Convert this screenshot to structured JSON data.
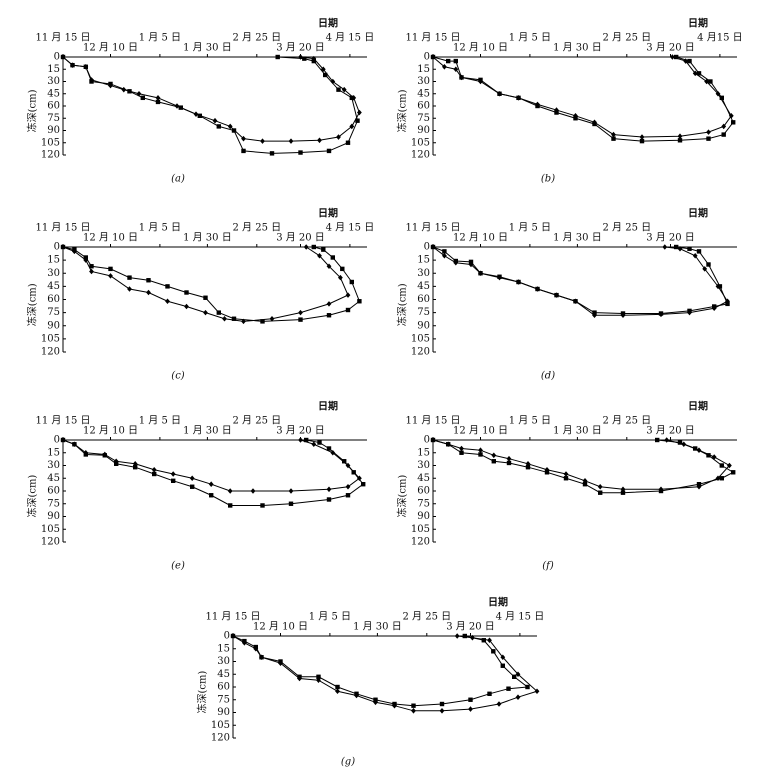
{
  "chart_data": [
    {
      "type": "line",
      "caption": "(a)",
      "xlabel": "日期",
      "ylabel": "冻深(cm)",
      "xlim": [
        0,
        160
      ],
      "ylim": [
        0,
        120
      ],
      "xticks": [
        {
          "value": 0,
          "label": "11 月 15 日"
        },
        {
          "value": 25,
          "label": "12 月 10 日"
        },
        {
          "value": 51,
          "label": "1 月 5 日"
        },
        {
          "value": 76,
          "label": "1 月 30 日"
        },
        {
          "value": 102,
          "label": "2 月 25 日"
        },
        {
          "value": 125,
          "label": "3 月 20 日"
        },
        {
          "value": 151,
          "label": "4 月 15 日"
        }
      ],
      "yticks": [
        0,
        15,
        30,
        45,
        60,
        75,
        90,
        105,
        120
      ],
      "series": [
        {
          "color": "#000000",
          "marker": "diamond",
          "x": [
            0,
            5,
            12,
            15,
            25,
            32,
            40,
            50,
            60,
            70,
            80,
            88,
            95,
            105,
            120,
            135,
            145,
            152,
            156,
            153,
            148,
            142,
            137,
            132,
            125
          ],
          "values": [
            0,
            10,
            12,
            28,
            35,
            40,
            45,
            50,
            60,
            70,
            78,
            85,
            100,
            103,
            103,
            102,
            98,
            85,
            68,
            50,
            40,
            30,
            15,
            2,
            0
          ]
        },
        {
          "color": "#000000",
          "marker": "square",
          "x": [
            0,
            5,
            12,
            15,
            25,
            35,
            42,
            50,
            62,
            72,
            82,
            90,
            95,
            110,
            125,
            140,
            150,
            155,
            152,
            145,
            138,
            132,
            127,
            113
          ],
          "values": [
            0,
            10,
            12,
            30,
            33,
            42,
            50,
            55,
            62,
            72,
            85,
            90,
            115,
            118,
            117,
            115,
            105,
            78,
            50,
            40,
            22,
            5,
            2,
            0
          ]
        }
      ]
    },
    {
      "type": "line",
      "caption": "(b)",
      "xlabel": "日期",
      "ylabel": "冻深(cm)",
      "xlim": [
        0,
        160
      ],
      "ylim": [
        0,
        120
      ],
      "xticks": [
        {
          "value": 0,
          "label": "11 月 15 日"
        },
        {
          "value": 25,
          "label": "12 月 10 日"
        },
        {
          "value": 51,
          "label": "1 月 5 日"
        },
        {
          "value": 76,
          "label": "1 月 30 日"
        },
        {
          "value": 102,
          "label": "2 月 25 日"
        },
        {
          "value": 125,
          "label": "3 月 20 日"
        },
        {
          "value": 151,
          "label": "4 月15 日"
        }
      ],
      "yticks": [
        0,
        15,
        30,
        45,
        60,
        75,
        90,
        105,
        120
      ],
      "series": [
        {
          "color": "#000000",
          "marker": "diamond",
          "x": [
            0,
            6,
            12,
            15,
            25,
            35,
            45,
            55,
            65,
            75,
            85,
            95,
            110,
            130,
            145,
            153,
            157,
            150,
            144,
            138,
            133,
            126
          ],
          "values": [
            0,
            12,
            15,
            25,
            30,
            45,
            50,
            58,
            65,
            72,
            80,
            95,
            98,
            97,
            92,
            85,
            72,
            45,
            30,
            20,
            5,
            0
          ]
        },
        {
          "color": "#000000",
          "marker": "square",
          "x": [
            0,
            8,
            12,
            15,
            25,
            35,
            45,
            55,
            65,
            75,
            85,
            95,
            110,
            130,
            145,
            153,
            158,
            152,
            146,
            140,
            135,
            128
          ],
          "values": [
            0,
            5,
            5,
            25,
            28,
            45,
            50,
            60,
            68,
            75,
            82,
            100,
            103,
            102,
            100,
            95,
            80,
            50,
            30,
            20,
            5,
            0
          ]
        }
      ]
    },
    {
      "type": "line",
      "caption": "(c)",
      "xlabel": "日期",
      "ylabel": "冻深(cm)",
      "xlim": [
        0,
        160
      ],
      "ylim": [
        0,
        120
      ],
      "xticks": [
        {
          "value": 0,
          "label": "11 月 15 日"
        },
        {
          "value": 25,
          "label": "12 月 10 日"
        },
        {
          "value": 51,
          "label": "1 月 5 日"
        },
        {
          "value": 76,
          "label": "1 月 30 日"
        },
        {
          "value": 102,
          "label": "2 月 25 日"
        },
        {
          "value": 125,
          "label": "3 月 20 日"
        },
        {
          "value": 151,
          "label": "4 月 15 日"
        }
      ],
      "yticks": [
        0,
        15,
        30,
        45,
        60,
        75,
        90,
        105,
        120
      ],
      "series": [
        {
          "color": "#000000",
          "marker": "diamond",
          "x": [
            0,
            6,
            12,
            15,
            25,
            35,
            45,
            55,
            65,
            75,
            85,
            95,
            110,
            125,
            140,
            150,
            146,
            140,
            135,
            128
          ],
          "values": [
            0,
            5,
            15,
            28,
            33,
            48,
            52,
            62,
            68,
            75,
            82,
            85,
            82,
            75,
            65,
            55,
            35,
            22,
            10,
            0
          ]
        },
        {
          "color": "#000000",
          "marker": "square",
          "x": [
            0,
            6,
            12,
            15,
            25,
            35,
            45,
            55,
            65,
            75,
            82,
            90,
            105,
            125,
            140,
            150,
            156,
            152,
            147,
            142,
            137,
            132
          ],
          "values": [
            0,
            3,
            12,
            22,
            25,
            35,
            38,
            45,
            52,
            58,
            75,
            82,
            85,
            83,
            78,
            72,
            62,
            40,
            25,
            12,
            3,
            0
          ]
        }
      ]
    },
    {
      "type": "line",
      "caption": "(d)",
      "xlabel": "日期",
      "ylabel": "冻深(cm)",
      "xlim": [
        0,
        160
      ],
      "ylim": [
        0,
        120
      ],
      "xticks": [
        {
          "value": 0,
          "label": "11 月 15 日"
        },
        {
          "value": 25,
          "label": "12 月 10 日"
        },
        {
          "value": 51,
          "label": "1 月 5 日"
        },
        {
          "value": 76,
          "label": "1 月 30 日"
        },
        {
          "value": 102,
          "label": "2 月 25 日"
        },
        {
          "value": 125,
          "label": "3 月 20 日"
        }
      ],
      "yticks": [
        0,
        15,
        30,
        45,
        60,
        75,
        90,
        105,
        120
      ],
      "series": [
        {
          "color": "#000000",
          "marker": "diamond",
          "x": [
            0,
            6,
            12,
            20,
            25,
            35,
            45,
            55,
            65,
            75,
            85,
            100,
            120,
            135,
            148,
            155,
            150,
            143,
            138,
            130,
            122
          ],
          "values": [
            0,
            10,
            18,
            20,
            30,
            35,
            40,
            48,
            55,
            62,
            78,
            78,
            77,
            75,
            70,
            62,
            45,
            25,
            10,
            2,
            0
          ]
        },
        {
          "color": "#000000",
          "marker": "square",
          "x": [
            0,
            6,
            12,
            20,
            25,
            35,
            45,
            55,
            65,
            75,
            85,
            100,
            120,
            135,
            148,
            155,
            151,
            145,
            140,
            135,
            128
          ],
          "values": [
            0,
            5,
            16,
            17,
            30,
            34,
            40,
            48,
            55,
            62,
            75,
            76,
            76,
            73,
            68,
            65,
            45,
            20,
            5,
            2,
            0
          ]
        }
      ]
    },
    {
      "type": "line",
      "caption": "(e)",
      "xlabel": "日期",
      "ylabel": "冻深(cm)",
      "xlim": [
        0,
        160
      ],
      "ylim": [
        0,
        120
      ],
      "xticks": [
        {
          "value": 0,
          "label": "11 月 15 日"
        },
        {
          "value": 25,
          "label": "12 月 10 日"
        },
        {
          "value": 51,
          "label": "1 月 5 日"
        },
        {
          "value": 76,
          "label": "1 月 30 日"
        },
        {
          "value": 102,
          "label": "2 月 25 日"
        },
        {
          "value": 125,
          "label": "3 月 20 日"
        }
      ],
      "yticks": [
        0,
        15,
        30,
        45,
        60,
        75,
        90,
        105,
        120
      ],
      "series": [
        {
          "color": "#000000",
          "marker": "diamond",
          "x": [
            0,
            6,
            12,
            22,
            28,
            38,
            48,
            58,
            68,
            78,
            88,
            100,
            120,
            140,
            150,
            156,
            150,
            142,
            132,
            125
          ],
          "values": [
            0,
            5,
            15,
            17,
            25,
            28,
            35,
            40,
            45,
            52,
            60,
            60,
            60,
            58,
            55,
            45,
            30,
            15,
            5,
            0
          ]
        },
        {
          "color": "#000000",
          "marker": "square",
          "x": [
            0,
            6,
            12,
            22,
            28,
            38,
            48,
            58,
            68,
            78,
            88,
            105,
            120,
            140,
            150,
            158,
            153,
            148,
            140,
            135,
            128
          ],
          "values": [
            0,
            5,
            17,
            18,
            28,
            32,
            40,
            48,
            55,
            65,
            77,
            77,
            75,
            70,
            65,
            52,
            38,
            25,
            10,
            3,
            0
          ]
        }
      ]
    },
    {
      "type": "line",
      "caption": "(f)",
      "xlabel": "日期",
      "ylabel": "冻深(cm)",
      "xlim": [
        0,
        160
      ],
      "ylim": [
        0,
        120
      ],
      "xticks": [
        {
          "value": 0,
          "label": "11 月 15 日"
        },
        {
          "value": 25,
          "label": "12 月 10 日"
        },
        {
          "value": 51,
          "label": "1 月 5 日"
        },
        {
          "value": 76,
          "label": "1 月 30 日"
        },
        {
          "value": 102,
          "label": "2 月 25 日"
        },
        {
          "value": 125,
          "label": "3 月 20 日"
        }
      ],
      "yticks": [
        0,
        15,
        30,
        45,
        60,
        75,
        90,
        105,
        120
      ],
      "series": [
        {
          "color": "#000000",
          "marker": "diamond",
          "x": [
            0,
            8,
            15,
            25,
            32,
            40,
            50,
            60,
            70,
            80,
            88,
            100,
            120,
            140,
            150,
            156,
            148,
            140,
            132,
            123
          ],
          "values": [
            0,
            5,
            10,
            12,
            18,
            22,
            28,
            35,
            40,
            48,
            55,
            58,
            58,
            55,
            45,
            30,
            20,
            12,
            5,
            0
          ]
        },
        {
          "color": "#000000",
          "marker": "square",
          "x": [
            0,
            8,
            15,
            25,
            32,
            40,
            50,
            60,
            70,
            80,
            88,
            100,
            120,
            140,
            152,
            158,
            152,
            145,
            138,
            130,
            118
          ],
          "values": [
            0,
            5,
            15,
            17,
            25,
            27,
            32,
            38,
            45,
            52,
            62,
            62,
            60,
            52,
            45,
            38,
            30,
            18,
            10,
            3,
            0
          ]
        }
      ]
    },
    {
      "type": "line",
      "caption": "(g)",
      "xlabel": "日期",
      "ylabel": "冻深(cm)",
      "xlim": [
        0,
        160
      ],
      "ylim": [
        0,
        120
      ],
      "xticks": [
        {
          "value": 0,
          "label": "11 月 15 日"
        },
        {
          "value": 25,
          "label": "12 月 10 日"
        },
        {
          "value": 51,
          "label": "1 月 5 日"
        },
        {
          "value": 76,
          "label": "1 月 30 日"
        },
        {
          "value": 102,
          "label": "2 月 25 日"
        },
        {
          "value": 125,
          "label": "3 月 20 日"
        },
        {
          "value": 151,
          "label": "4 月 15 日"
        }
      ],
      "yticks": [
        0,
        15,
        30,
        45,
        60,
        75,
        90,
        105,
        120
      ],
      "series": [
        {
          "color": "#000000",
          "marker": "diamond",
          "x": [
            0,
            6,
            12,
            15,
            25,
            35,
            45,
            55,
            65,
            75,
            85,
            95,
            110,
            125,
            140,
            150,
            160,
            150,
            142,
            135,
            126,
            118
          ],
          "values": [
            0,
            8,
            15,
            25,
            32,
            50,
            52,
            65,
            70,
            78,
            82,
            88,
            88,
            86,
            80,
            72,
            65,
            45,
            25,
            5,
            2,
            0
          ]
        },
        {
          "color": "#000000",
          "marker": "square",
          "x": [
            0,
            6,
            12,
            15,
            25,
            35,
            45,
            55,
            65,
            75,
            85,
            95,
            110,
            125,
            135,
            145,
            155,
            148,
            142,
            137,
            132,
            122
          ],
          "values": [
            0,
            6,
            13,
            25,
            30,
            48,
            48,
            60,
            68,
            75,
            80,
            82,
            80,
            75,
            68,
            62,
            60,
            48,
            35,
            18,
            5,
            0
          ]
        }
      ]
    }
  ]
}
